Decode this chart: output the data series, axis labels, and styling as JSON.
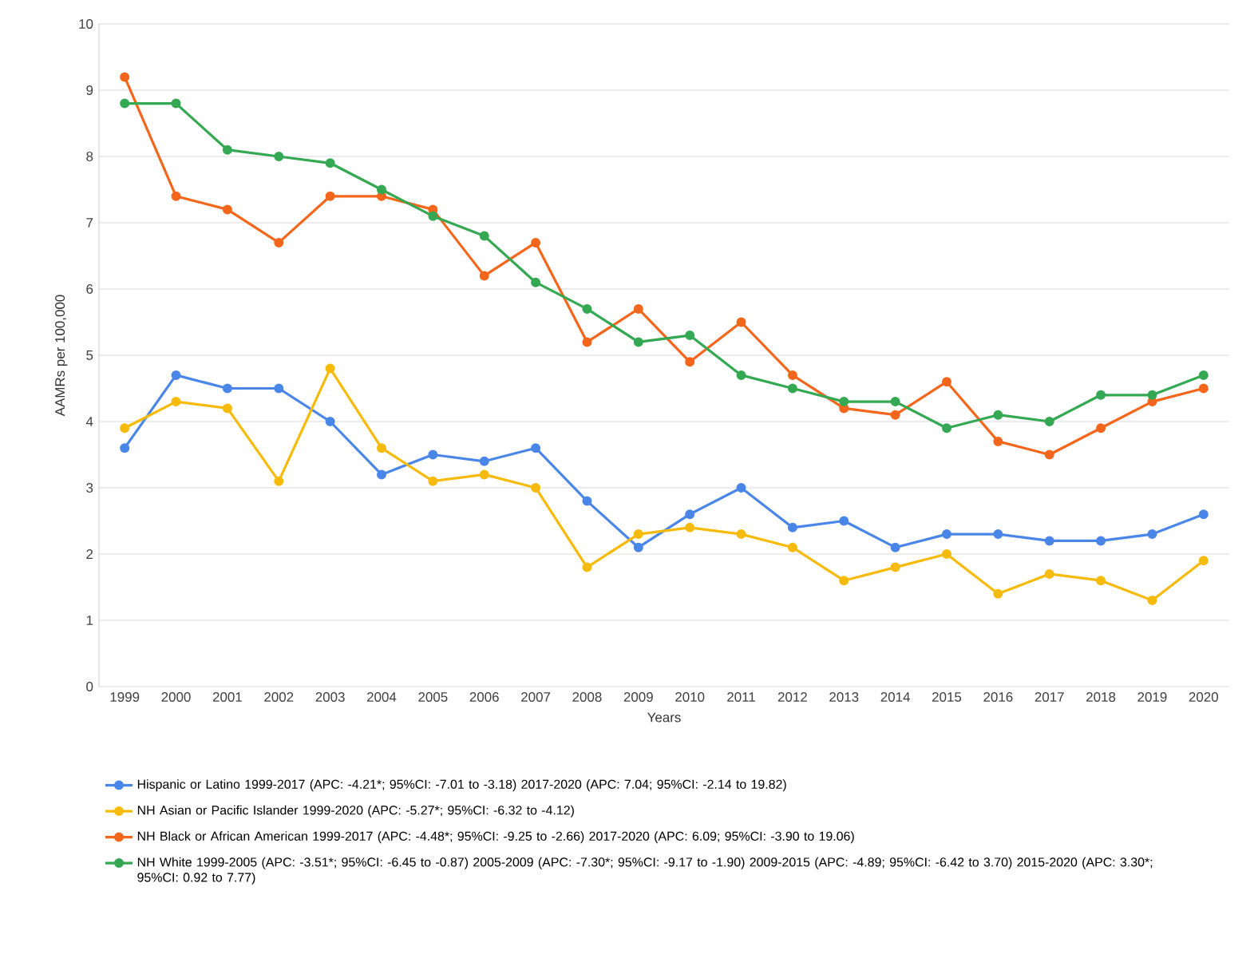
{
  "chart_data": {
    "type": "line",
    "xlabel": "Years",
    "ylabel": "AAMRs per 100,000",
    "categories": [
      "1999",
      "2000",
      "2001",
      "2002",
      "2003",
      "2004",
      "2005",
      "2006",
      "2007",
      "2008",
      "2009",
      "2010",
      "2011",
      "2012",
      "2013",
      "2014",
      "2015",
      "2016",
      "2017",
      "2018",
      "2019",
      "2020"
    ],
    "series": [
      {
        "name": "Hispanic or Latino 1999-2017 (APC: -4.21*; 95%CI: -7.01 to -3.18) 2017-2020 (APC: 7.04; 95%CI: -2.14 to 19.82)",
        "color": "#4a86e8",
        "values": [
          3.6,
          4.7,
          4.5,
          4.5,
          4.0,
          3.2,
          3.5,
          3.4,
          3.6,
          2.8,
          2.1,
          2.6,
          3.0,
          2.4,
          2.5,
          2.1,
          2.3,
          2.3,
          2.2,
          2.2,
          2.3,
          2.6
        ]
      },
      {
        "name": "NH Asian or Pacific Islander 1999-2020 (APC: -5.27*; 95%CI: -6.32 to -4.12)",
        "color": "#f6bb0a",
        "values": [
          3.9,
          4.3,
          4.2,
          3.1,
          4.8,
          3.6,
          3.1,
          3.2,
          3.0,
          1.8,
          2.3,
          2.4,
          2.3,
          2.1,
          1.6,
          1.8,
          2.0,
          1.4,
          1.7,
          1.6,
          1.3,
          1.9
        ]
      },
      {
        "name": "NH Black or African American 1999-2017 (APC: -4.48*; 95%CI: -9.25 to -2.66) 2017-2020 (APC: 6.09; 95%CI: -3.90 to 19.06)",
        "color": "#f4661b",
        "values": [
          9.2,
          7.4,
          7.2,
          6.7,
          7.4,
          7.4,
          7.2,
          6.2,
          6.7,
          5.2,
          5.7,
          4.9,
          5.5,
          4.7,
          4.2,
          4.1,
          4.6,
          3.7,
          3.5,
          3.9,
          4.3,
          4.5
        ]
      },
      {
        "name": "NH White 1999-2005 (APC: -3.51*; 95%CI: -6.45 to -0.87) 2005-2009 (APC: -7.30*; 95%CI: -9.17 to -1.90) 2009-2015 (APC: -4.89; 95%CI: -6.42 to 3.70) 2015-2020 (APC: 3.30*; 95%CI: 0.92 to 7.77)",
        "color": "#34a853",
        "values": [
          8.8,
          8.8,
          8.1,
          8.0,
          7.9,
          7.5,
          7.1,
          6.8,
          6.1,
          5.7,
          5.2,
          5.3,
          4.7,
          4.5,
          4.3,
          4.3,
          3.9,
          4.1,
          4.0,
          4.4,
          4.4,
          4.7
        ]
      }
    ],
    "ylim": [
      0,
      10
    ],
    "yticks": [
      0,
      1,
      2,
      3,
      4,
      5,
      6,
      7,
      8,
      9,
      10
    ],
    "grid": "y",
    "legend": "bottom",
    "marker": "circle",
    "line_style": "solid"
  }
}
